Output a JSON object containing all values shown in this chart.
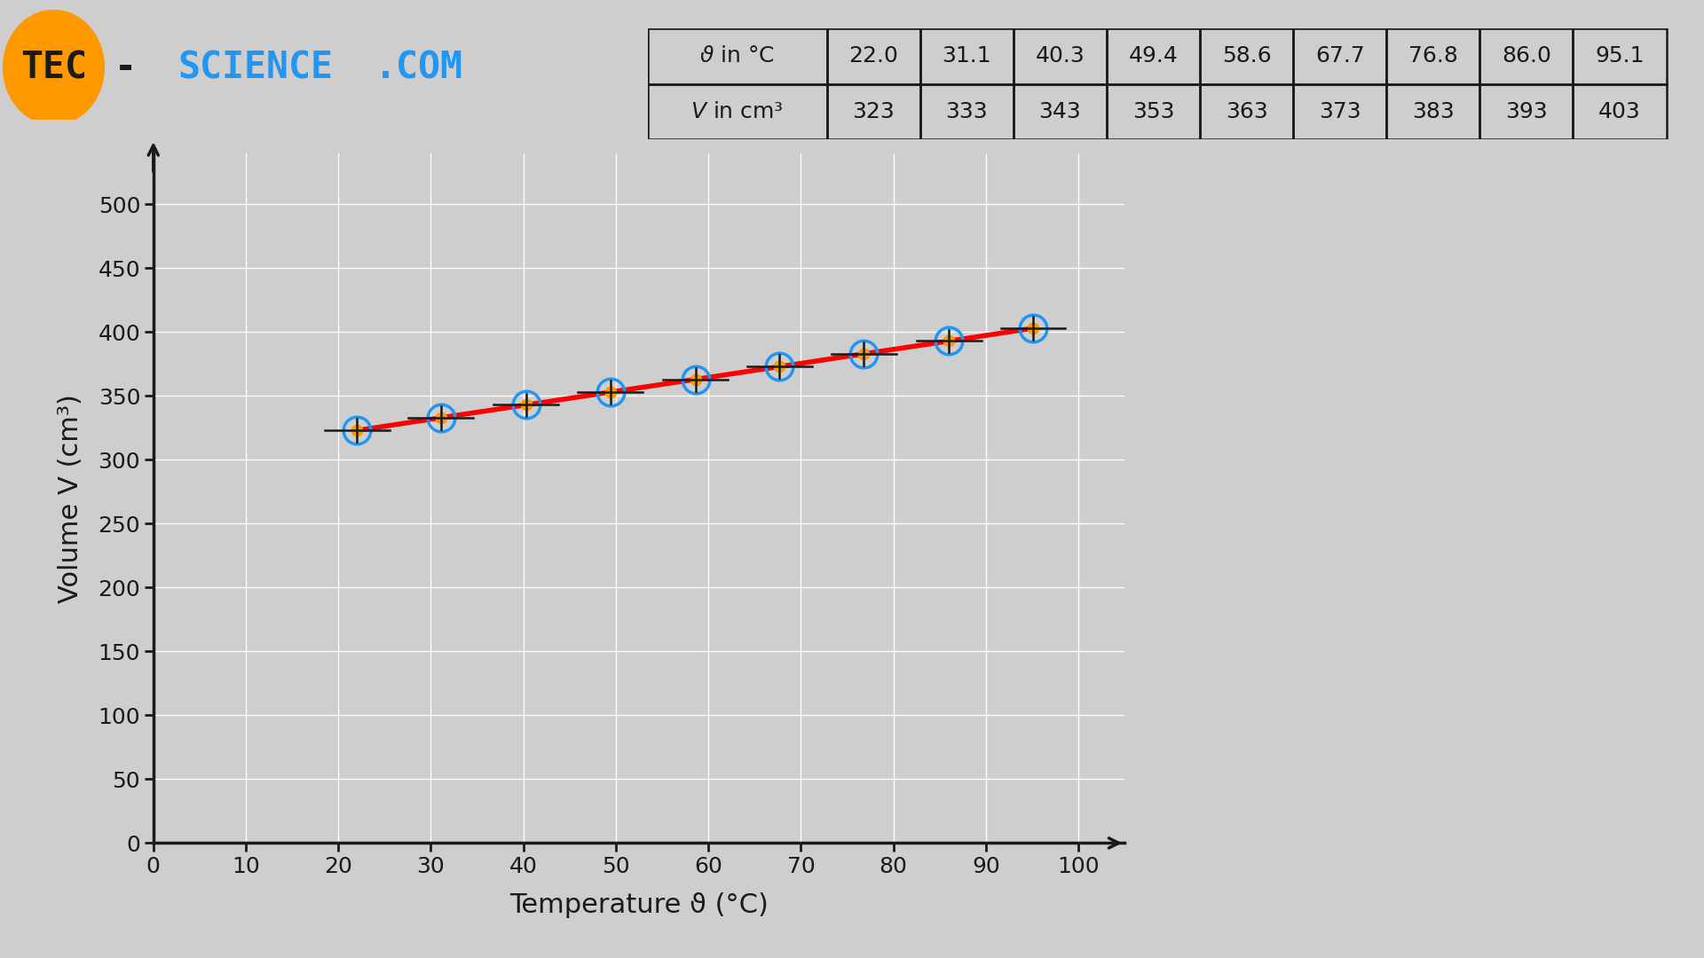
{
  "temperatures": [
    22.0,
    31.1,
    40.3,
    49.4,
    58.6,
    67.7,
    76.8,
    86.0,
    95.1
  ],
  "volumes": [
    323,
    333,
    343,
    353,
    363,
    373,
    383,
    393,
    403
  ],
  "xlim": [
    0,
    105
  ],
  "ylim": [
    0,
    540
  ],
  "xticks": [
    0,
    10,
    20,
    30,
    40,
    50,
    60,
    70,
    80,
    90,
    100
  ],
  "yticks": [
    0,
    50,
    100,
    150,
    200,
    250,
    300,
    350,
    400,
    450,
    500
  ],
  "xlabel": "Temperature ϑ (°C)",
  "ylabel": "Volume V (cm³)",
  "bg_color": "#cecece",
  "grid_color": "#ffffff",
  "line_color": "#ff0000",
  "marker_outer_color": "#2196f3",
  "marker_inner_color": "#ff9900",
  "axis_color": "#1a1a1a",
  "font_size_axis_label": 22,
  "font_size_tick": 18,
  "font_size_table": 18,
  "table_bg": "#cecece",
  "logo_orange": "#ff9900",
  "logo_dark": "#1a1a1a",
  "logo_blue": "#2196f3"
}
